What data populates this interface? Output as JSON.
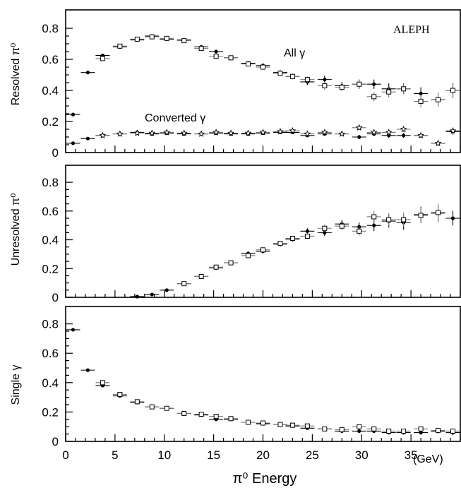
{
  "chart_data": [
    {
      "type": "scatter",
      "ylabel": "Resolved π⁰",
      "ylim": [
        0,
        0.9
      ],
      "yticks": [
        "0",
        "0.2",
        "0.4",
        "0.6",
        "0.8"
      ],
      "annotations": {
        "experiment": "ALEPH",
        "all_gamma": "All γ",
        "converted_gamma": "Converted γ"
      },
      "series": [
        {
          "marker": "filled-circle",
          "x": [
            0.75,
            2.25,
            3.75,
            5.5,
            7.25,
            8.75,
            10.25,
            12,
            13.75,
            15.25,
            16.75,
            18.5,
            20,
            21.75,
            23,
            24.5,
            26.25,
            28,
            29.75,
            31.25,
            32.75,
            34.25,
            36,
            37.75,
            39.25
          ],
          "y": [
            0.245,
            0.515,
            0.625,
            0.68,
            0.725,
            0.75,
            0.73,
            0.725,
            0.68,
            0.65,
            0.61,
            0.575,
            0.56,
            0.515,
            0.49,
            0.455,
            0.47,
            0.43,
            0.44,
            0.44,
            0.41,
            0.41,
            0.38,
            0.34,
            0.4
          ],
          "err": [
            0.005,
            0.006,
            0.008,
            0.008,
            0.008,
            0.008,
            0.009,
            0.009,
            0.01,
            0.012,
            0.012,
            0.014,
            0.015,
            0.016,
            0.018,
            0.02,
            0.025,
            0.025,
            0.03,
            0.03,
            0.035,
            0.035,
            0.04,
            0.045,
            0.05
          ]
        },
        {
          "marker": "open-square",
          "x": [
            3.75,
            5.5,
            7.25,
            8.75,
            10.25,
            12,
            13.75,
            15.25,
            16.75,
            18.5,
            20,
            21.75,
            23,
            24.5,
            26.25,
            28,
            29.75,
            31.25,
            32.75,
            34.25,
            36,
            37.75,
            39.25
          ],
          "y": [
            0.605,
            0.685,
            0.73,
            0.745,
            0.735,
            0.72,
            0.67,
            0.62,
            0.61,
            0.57,
            0.55,
            0.51,
            0.49,
            0.47,
            0.43,
            0.42,
            0.44,
            0.36,
            0.39,
            0.41,
            0.33,
            0.34,
            0.4
          ],
          "err": [
            0.008,
            0.008,
            0.008,
            0.008,
            0.009,
            0.009,
            0.01,
            0.012,
            0.012,
            0.014,
            0.015,
            0.016,
            0.018,
            0.02,
            0.025,
            0.025,
            0.03,
            0.03,
            0.035,
            0.035,
            0.04,
            0.045,
            0.05
          ]
        },
        {
          "marker": "filled-circle",
          "x": [
            0.75,
            2.25,
            3.75,
            5.5,
            7.25,
            8.75,
            10.25,
            12,
            13.75,
            15.25,
            16.75,
            18.5,
            20,
            21.75,
            23,
            24.5,
            26.25,
            28,
            29.75,
            31.25,
            32.75,
            34.25,
            36,
            37.75,
            39.25
          ],
          "y": [
            0.06,
            0.09,
            0.11,
            0.12,
            0.13,
            0.12,
            0.125,
            0.12,
            0.12,
            0.125,
            0.12,
            0.12,
            0.125,
            0.13,
            0.13,
            0.11,
            0.12,
            0.12,
            0.1,
            0.12,
            0.11,
            0.11,
            0.11,
            0.06,
            0.135
          ],
          "err": [
            0.004,
            0.005,
            0.005,
            0.005,
            0.005,
            0.005,
            0.006,
            0.006,
            0.006,
            0.007,
            0.007,
            0.008,
            0.008,
            0.009,
            0.01,
            0.01,
            0.012,
            0.012,
            0.013,
            0.014,
            0.015,
            0.016,
            0.017,
            0.018,
            0.02
          ]
        },
        {
          "marker": "open-star",
          "x": [
            3.75,
            5.5,
            7.25,
            8.75,
            10.25,
            12,
            13.75,
            15.25,
            16.75,
            18.5,
            20,
            21.75,
            23,
            24.5,
            26.25,
            28,
            29.75,
            31.25,
            32.75,
            34.25,
            36,
            37.75,
            39.25
          ],
          "y": [
            0.11,
            0.12,
            0.125,
            0.125,
            0.13,
            0.125,
            0.12,
            0.13,
            0.125,
            0.125,
            0.13,
            0.135,
            0.14,
            0.12,
            0.13,
            0.12,
            0.16,
            0.13,
            0.13,
            0.15,
            0.11,
            0.06,
            0.14
          ],
          "err": [
            0.005,
            0.005,
            0.005,
            0.005,
            0.006,
            0.006,
            0.006,
            0.007,
            0.007,
            0.008,
            0.008,
            0.009,
            0.01,
            0.01,
            0.012,
            0.012,
            0.013,
            0.014,
            0.015,
            0.016,
            0.017,
            0.018,
            0.02
          ]
        }
      ]
    },
    {
      "type": "scatter",
      "ylabel": "Unresolved π⁰",
      "ylim": [
        0,
        0.9
      ],
      "yticks": [
        "0",
        "0.2",
        "0.4",
        "0.6",
        "0.8"
      ],
      "series": [
        {
          "marker": "filled-circle",
          "x": [
            7.25,
            8.75,
            10.25,
            12,
            13.75,
            15.25,
            16.75,
            18.5,
            20,
            21.75,
            23,
            24.5,
            26.25,
            28,
            29.75,
            31.25,
            32.75,
            34.25,
            36,
            37.75,
            39.25
          ],
          "y": [
            0.005,
            0.02,
            0.05,
            0.095,
            0.145,
            0.205,
            0.24,
            0.305,
            0.32,
            0.37,
            0.405,
            0.46,
            0.45,
            0.51,
            0.49,
            0.5,
            0.53,
            0.52,
            0.575,
            0.585,
            0.55
          ],
          "err": [
            0.003,
            0.004,
            0.005,
            0.006,
            0.008,
            0.01,
            0.012,
            0.014,
            0.015,
            0.016,
            0.018,
            0.02,
            0.025,
            0.028,
            0.03,
            0.04,
            0.045,
            0.05,
            0.055,
            0.06,
            0.05
          ]
        },
        {
          "marker": "open-square",
          "x": [
            12,
            13.75,
            15.25,
            16.75,
            18.5,
            20,
            21.75,
            23,
            24.5,
            26.25,
            28,
            29.75,
            31.25,
            32.75,
            34.25,
            36,
            37.75
          ],
          "y": [
            0.095,
            0.145,
            0.21,
            0.24,
            0.29,
            0.33,
            0.375,
            0.41,
            0.425,
            0.48,
            0.495,
            0.46,
            0.56,
            0.54,
            0.54,
            0.57,
            0.59
          ],
          "err": [
            0.006,
            0.008,
            0.01,
            0.012,
            0.014,
            0.015,
            0.016,
            0.018,
            0.02,
            0.025,
            0.028,
            0.03,
            0.04,
            0.045,
            0.05,
            0.055,
            0.06
          ]
        }
      ]
    },
    {
      "type": "scatter",
      "ylabel": "Single γ",
      "xlabel": "π⁰ Energy",
      "xunit": "(GeV)",
      "xlim": [
        0,
        40
      ],
      "ylim": [
        0,
        0.9
      ],
      "xticks": [
        "0",
        "5",
        "10",
        "15",
        "20",
        "25",
        "30",
        "35"
      ],
      "yticks": [
        "0",
        "0.2",
        "0.4",
        "0.6",
        "0.8"
      ],
      "series": [
        {
          "marker": "filled-circle",
          "x": [
            0.75,
            2.25,
            3.75,
            5.5,
            7.25,
            8.75,
            10.25,
            12,
            13.75,
            15.25,
            16.75,
            18.5,
            20,
            21.75,
            23,
            24.5,
            26.25,
            28,
            29.75,
            31.25,
            32.75,
            34.25,
            36,
            37.75,
            39.25
          ],
          "y": [
            0.76,
            0.485,
            0.38,
            0.31,
            0.265,
            0.235,
            0.225,
            0.19,
            0.18,
            0.15,
            0.15,
            0.13,
            0.12,
            0.115,
            0.105,
            0.09,
            0.085,
            0.07,
            0.07,
            0.07,
            0.06,
            0.06,
            0.06,
            0.07,
            0.06
          ],
          "err": [
            0.005,
            0.006,
            0.007,
            0.007,
            0.007,
            0.007,
            0.007,
            0.007,
            0.007,
            0.008,
            0.008,
            0.008,
            0.008,
            0.009,
            0.009,
            0.01,
            0.01,
            0.011,
            0.012,
            0.012,
            0.013,
            0.014,
            0.015,
            0.016,
            0.018
          ]
        },
        {
          "marker": "open-square",
          "x": [
            3.75,
            5.5,
            7.25,
            8.75,
            10.25,
            12,
            13.75,
            15.25,
            16.75,
            18.5,
            20,
            21.75,
            23,
            24.5,
            26.25,
            28,
            29.75,
            31.25,
            32.75,
            34.25,
            36,
            37.75,
            39.25
          ],
          "y": [
            0.4,
            0.32,
            0.27,
            0.235,
            0.225,
            0.19,
            0.185,
            0.17,
            0.155,
            0.13,
            0.125,
            0.115,
            0.11,
            0.105,
            0.085,
            0.08,
            0.1,
            0.085,
            0.07,
            0.07,
            0.085,
            0.075,
            0.07
          ],
          "err": [
            0.007,
            0.007,
            0.007,
            0.007,
            0.007,
            0.007,
            0.007,
            0.008,
            0.008,
            0.008,
            0.008,
            0.009,
            0.009,
            0.01,
            0.01,
            0.011,
            0.012,
            0.012,
            0.013,
            0.014,
            0.015,
            0.016,
            0.018
          ]
        }
      ]
    }
  ]
}
